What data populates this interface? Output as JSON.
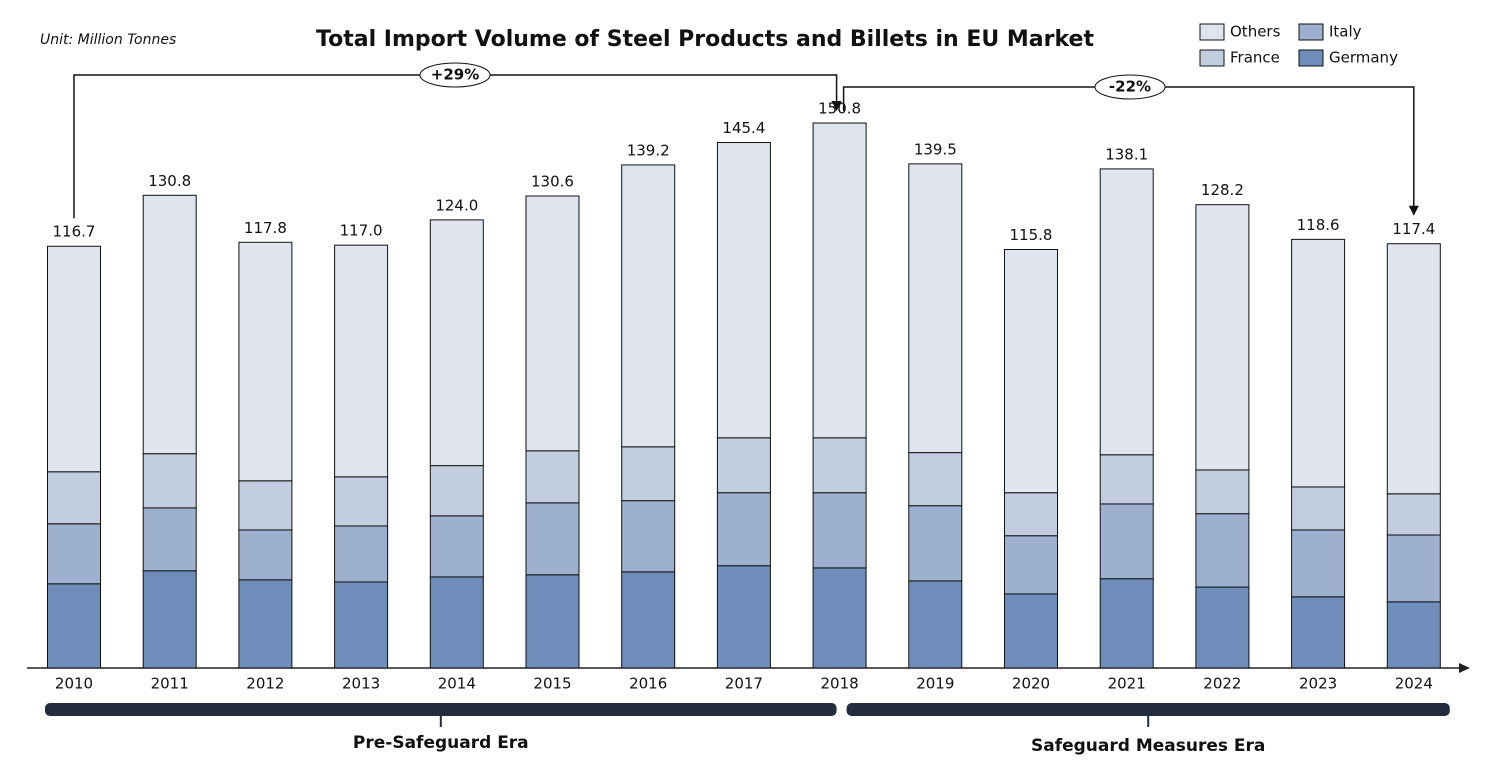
{
  "chart_data": {
    "type": "stacked_bar",
    "title": "Total Import Volume of Steel Products and Billets in EU Market",
    "unit": "Unit: Million Tonnes",
    "categories": [
      "2010",
      "2011",
      "2012",
      "2013",
      "2014",
      "2015",
      "2016",
      "2017",
      "2018",
      "2019",
      "2020",
      "2021",
      "2022",
      "2023",
      "2024"
    ],
    "series": [
      {
        "name": "Germany",
        "color": "#6e8dbb",
        "values": [
          23.3,
          26.9,
          24.4,
          23.8,
          25.2,
          25.8,
          26.6,
          28.3,
          27.7,
          24.1,
          20.5,
          24.7,
          22.4,
          19.7,
          18.3
        ]
      },
      {
        "name": "Italy",
        "color": "#9eb0cf",
        "values": [
          16.6,
          17.4,
          13.8,
          15.5,
          16.9,
          19.9,
          19.7,
          20.2,
          20.8,
          20.8,
          16.1,
          20.7,
          20.3,
          18.5,
          18.5
        ]
      },
      {
        "name": "France",
        "color": "#c3cde0",
        "values": [
          14.4,
          15.0,
          13.6,
          13.6,
          13.9,
          14.4,
          14.9,
          15.2,
          15.2,
          14.7,
          11.9,
          13.6,
          12.1,
          11.9,
          11.4
        ]
      },
      {
        "name": "Others",
        "color": "#dfe4ee",
        "values": [
          62.4,
          71.5,
          66.0,
          64.1,
          68.0,
          70.5,
          78.0,
          81.7,
          87.1,
          79.9,
          67.3,
          79.1,
          73.4,
          68.5,
          69.2
        ]
      }
    ],
    "totals": [
      116.7,
      130.8,
      117.8,
      117.0,
      124.0,
      130.6,
      139.2,
      145.4,
      150.8,
      139.5,
      115.8,
      138.1,
      128.2,
      118.6,
      117.4
    ],
    "total_labels": [
      "116.7",
      "130.8",
      "117.8",
      "117.0",
      "124.0",
      "130.6",
      "139.2",
      "145.4",
      "150.8",
      "139.5",
      "115.8",
      "138.1",
      "128.2",
      "118.6",
      "117.4"
    ],
    "annotations": [
      "+29%",
      "-22%"
    ],
    "eras": [
      "Pre-Safeguard Era",
      "Safeguard Measures Era"
    ]
  }
}
